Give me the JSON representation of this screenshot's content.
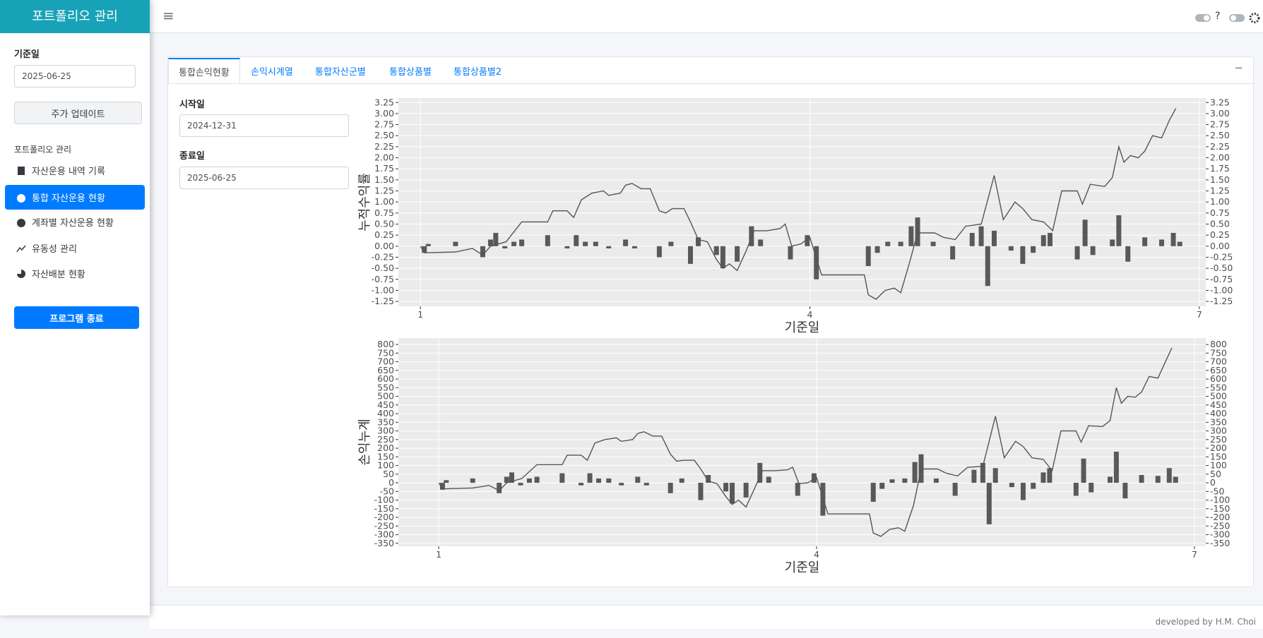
{
  "sidebar": {
    "title": "포트폴리오 관리",
    "date_label": "기준일",
    "date_value": "2025-06-25",
    "update_button": "주가 업데이트",
    "section": "포트폴리오 관리",
    "menu": [
      "자산운용 내역 기록",
      "통합 자산운용 현황",
      "계좌별 자산운용 현황",
      "유동성 관리",
      "자산배분 현황"
    ],
    "exit_button": "프로그램 종료"
  },
  "header": {
    "menu_icon": "≡",
    "help": "?"
  },
  "tabs": [
    "통합손익현황",
    "손익시계열",
    "통합자산군별",
    "통합상품별",
    "통합상품별2"
  ],
  "collapse": "−",
  "filters": {
    "start_label": "시작일",
    "start_value": "2024-12-31",
    "end_label": "종료일",
    "end_value": "2025-06-25"
  },
  "chart_data": [
    {
      "type": "combo",
      "y_label": "누적수익률",
      "x_label": "기준일",
      "grid": true,
      "xlim": [
        0.83,
        7.05
      ],
      "xticks": [
        1,
        4,
        7
      ],
      "ylim": [
        -1.36,
        3.35
      ],
      "yticks": [
        -1.25,
        {
          "value": -1,
          "label": "-1.00"
        },
        -0.75,
        {
          "value": -0.5,
          "label": "-0.50"
        },
        -0.25,
        {
          "value": 0,
          "label": "0.00"
        },
        0.25,
        {
          "value": 0.5,
          "label": "0.50"
        },
        0.75,
        {
          "value": 1,
          "label": "1.00"
        },
        1.25,
        {
          "value": 1.5,
          "label": "1.50"
        },
        1.75,
        {
          "value": 2,
          "label": "2.00"
        },
        2.25,
        {
          "value": 2.5,
          "label": "2.50"
        },
        2.75,
        {
          "value": 3,
          "label": "3.00"
        },
        3.25
      ],
      "line": {
        "color": "#555555",
        "x": [
          1.0,
          1.03,
          1.27,
          1.4,
          1.48,
          1.54,
          1.66,
          1.78,
          1.98,
          2.02,
          2.13,
          2.18,
          2.24,
          2.32,
          2.41,
          2.45,
          2.54,
          2.58,
          2.63,
          2.7,
          2.77,
          2.84,
          2.89,
          2.94,
          3.03,
          3.08,
          3.14,
          3.21,
          3.28,
          3.33,
          3.38,
          3.44,
          3.51,
          3.57,
          3.67,
          3.77,
          3.81,
          3.86,
          3.93,
          4.0,
          4.09,
          4.42,
          4.45,
          4.51,
          4.58,
          4.65,
          4.7,
          4.77,
          4.83,
          4.96,
          5.03,
          5.12,
          5.2,
          5.32,
          5.42,
          5.49,
          5.58,
          5.64,
          5.71,
          5.8,
          5.87,
          5.94,
          6.06,
          6.1,
          6.16,
          6.27,
          6.33,
          6.38,
          6.42,
          6.47,
          6.53,
          6.58,
          6.64,
          6.71,
          6.77,
          6.82
        ],
        "values": [
          0,
          -0.15,
          -0.13,
          -0.05,
          -0.2,
          0.0,
          0.1,
          0.55,
          0.55,
          0.8,
          0.8,
          0.65,
          1.05,
          1.2,
          1.25,
          1.15,
          1.2,
          1.38,
          1.42,
          1.3,
          1.3,
          0.8,
          0.75,
          0.85,
          0.85,
          0.55,
          0.15,
          0.1,
          -0.3,
          -0.5,
          -0.4,
          -0.55,
          -0.1,
          0.35,
          0.35,
          0.4,
          0.5,
          0.0,
          0.05,
          0.2,
          -0.65,
          -0.65,
          -1.1,
          -1.2,
          -1.0,
          -0.95,
          -1.05,
          -0.35,
          0.3,
          0.3,
          0.2,
          0.15,
          0.45,
          0.5,
          1.6,
          0.6,
          1.0,
          0.85,
          0.6,
          0.55,
          0.35,
          1.25,
          1.25,
          0.95,
          1.4,
          1.35,
          1.55,
          2.25,
          1.9,
          2.05,
          2.0,
          2.15,
          2.5,
          2.45,
          2.85,
          3.12
        ]
      },
      "bars": {
        "color": "#595959",
        "x": [
          1.03,
          1.06,
          1.27,
          1.48,
          1.54,
          1.58,
          1.65,
          1.72,
          1.78,
          1.98,
          2.13,
          2.2,
          2.27,
          2.35,
          2.45,
          2.58,
          2.65,
          2.84,
          2.93,
          3.08,
          3.14,
          3.28,
          3.33,
          3.44,
          3.55,
          3.62,
          3.85,
          3.98,
          4.05,
          4.45,
          4.52,
          4.6,
          4.7,
          4.78,
          4.83,
          4.95,
          5.1,
          5.25,
          5.32,
          5.37,
          5.42,
          5.55,
          5.64,
          5.72,
          5.8,
          5.85,
          6.06,
          6.12,
          6.18,
          6.33,
          6.38,
          6.45,
          6.58,
          6.71,
          6.8,
          6.85
        ],
        "values": [
          -0.15,
          0.05,
          0.1,
          -0.25,
          0.15,
          0.3,
          -0.05,
          0.1,
          0.15,
          0.25,
          -0.05,
          0.25,
          0.1,
          0.1,
          -0.05,
          0.15,
          -0.05,
          -0.25,
          0.1,
          -0.4,
          0.2,
          -0.2,
          -0.5,
          -0.35,
          0.45,
          0.15,
          -0.3,
          0.25,
          -0.75,
          -0.45,
          -0.15,
          0.1,
          0.1,
          0.45,
          0.65,
          0.1,
          -0.3,
          0.3,
          0.45,
          -0.9,
          0.35,
          -0.1,
          -0.4,
          -0.15,
          0.25,
          0.3,
          -0.3,
          0.6,
          -0.2,
          0.15,
          0.7,
          -0.35,
          0.2,
          0.15,
          0.3,
          0.1
        ]
      }
    },
    {
      "type": "combo",
      "y_label": "손익누계",
      "x_label": "기준일",
      "grid": true,
      "xlim": [
        0.68,
        7.09
      ],
      "xticks": [
        1,
        4,
        7
      ],
      "ylim": [
        -367,
        837
      ],
      "yticks": [
        -350,
        -300,
        -250,
        -200,
        -150,
        -100,
        -50,
        0,
        50,
        100,
        150,
        200,
        250,
        300,
        350,
        400,
        450,
        500,
        550,
        600,
        650,
        700,
        750,
        800
      ],
      "line": {
        "color": "#555555",
        "x": [
          1.0,
          1.03,
          1.27,
          1.4,
          1.48,
          1.54,
          1.66,
          1.78,
          1.98,
          2.02,
          2.13,
          2.18,
          2.24,
          2.32,
          2.41,
          2.45,
          2.54,
          2.58,
          2.63,
          2.7,
          2.77,
          2.84,
          2.89,
          2.94,
          3.03,
          3.08,
          3.14,
          3.21,
          3.28,
          3.33,
          3.38,
          3.44,
          3.51,
          3.57,
          3.67,
          3.77,
          3.81,
          3.86,
          3.93,
          4.0,
          4.09,
          4.42,
          4.45,
          4.51,
          4.58,
          4.65,
          4.7,
          4.77,
          4.83,
          4.96,
          5.03,
          5.12,
          5.2,
          5.32,
          5.42,
          5.49,
          5.58,
          5.64,
          5.71,
          5.8,
          5.87,
          5.94,
          6.06,
          6.1,
          6.16,
          6.27,
          6.33,
          6.38,
          6.42,
          6.47,
          6.53,
          6.58,
          6.64,
          6.71,
          6.77,
          6.82
        ],
        "values": [
          0,
          -35,
          -30,
          -15,
          -45,
          0,
          25,
          105,
          105,
          160,
          160,
          130,
          230,
          250,
          260,
          240,
          250,
          285,
          295,
          270,
          270,
          165,
          125,
          130,
          130,
          80,
          10,
          -5,
          -80,
          -125,
          -100,
          -140,
          -30,
          70,
          70,
          75,
          90,
          -5,
          0,
          30,
          -180,
          -180,
          -290,
          -310,
          -270,
          -260,
          -280,
          -130,
          80,
          80,
          55,
          40,
          90,
          95,
          385,
          145,
          240,
          210,
          145,
          135,
          70,
          300,
          300,
          235,
          330,
          325,
          360,
          550,
          460,
          500,
          495,
          525,
          615,
          605,
          700,
          780
        ]
      },
      "bars": {
        "color": "#595959",
        "x": [
          1.03,
          1.06,
          1.27,
          1.48,
          1.54,
          1.58,
          1.65,
          1.72,
          1.78,
          1.98,
          2.13,
          2.2,
          2.27,
          2.35,
          2.45,
          2.58,
          2.65,
          2.84,
          2.93,
          3.08,
          3.14,
          3.28,
          3.33,
          3.44,
          3.55,
          3.62,
          3.85,
          3.98,
          4.05,
          4.45,
          4.52,
          4.6,
          4.7,
          4.78,
          4.83,
          4.95,
          5.1,
          5.25,
          5.32,
          5.37,
          5.42,
          5.55,
          5.64,
          5.72,
          5.8,
          5.85,
          6.06,
          6.12,
          6.18,
          6.33,
          6.38,
          6.45,
          6.58,
          6.71,
          6.8,
          6.85
        ],
        "values": [
          -40,
          15,
          25,
          -60,
          35,
          60,
          -15,
          25,
          35,
          55,
          -15,
          55,
          25,
          25,
          -15,
          35,
          -15,
          -60,
          25,
          -100,
          45,
          -50,
          -120,
          -85,
          115,
          35,
          -75,
          55,
          -190,
          -110,
          -35,
          20,
          25,
          120,
          165,
          25,
          -75,
          75,
          115,
          -240,
          85,
          -25,
          -100,
          -35,
          60,
          85,
          -75,
          140,
          -55,
          35,
          180,
          -90,
          45,
          40,
          85,
          35
        ]
      }
    }
  ],
  "footer": "developed by H.M. Choi"
}
